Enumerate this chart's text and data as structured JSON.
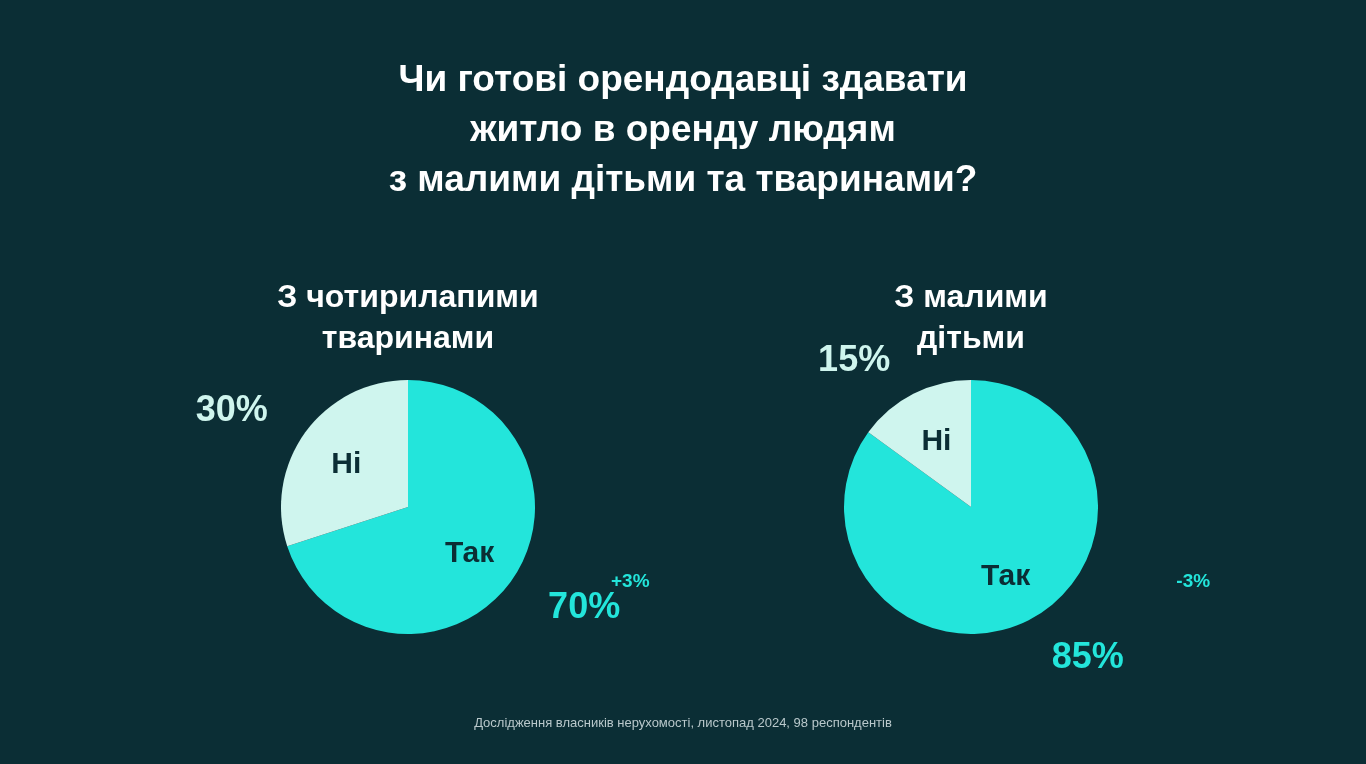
{
  "chart_data": [
    {
      "type": "pie",
      "title": "Чи готові орендодавці здавати\nжитло в оренду людям\nз малими дітьми та тваринами?",
      "subtitle": "З чотирилапими\nтваринами",
      "categories": [
        "Так",
        "Ні"
      ],
      "values": [
        70,
        30
      ],
      "colors": [
        "#23e5db",
        "#cff5ee"
      ],
      "value_labels": [
        "70%",
        "30%"
      ],
      "annotations": [
        "+3%"
      ]
    },
    {
      "type": "pie",
      "subtitle": "З малими\nдітьми",
      "categories": [
        "Так",
        "Ні"
      ],
      "values": [
        85,
        15
      ],
      "colors": [
        "#23e5db",
        "#cff5ee"
      ],
      "value_labels": [
        "85%",
        "15%"
      ],
      "annotations": [
        "-3%",
        "Дослідження власників нерухомості, листопад 2024, 98 респондентів"
      ]
    }
  ]
}
